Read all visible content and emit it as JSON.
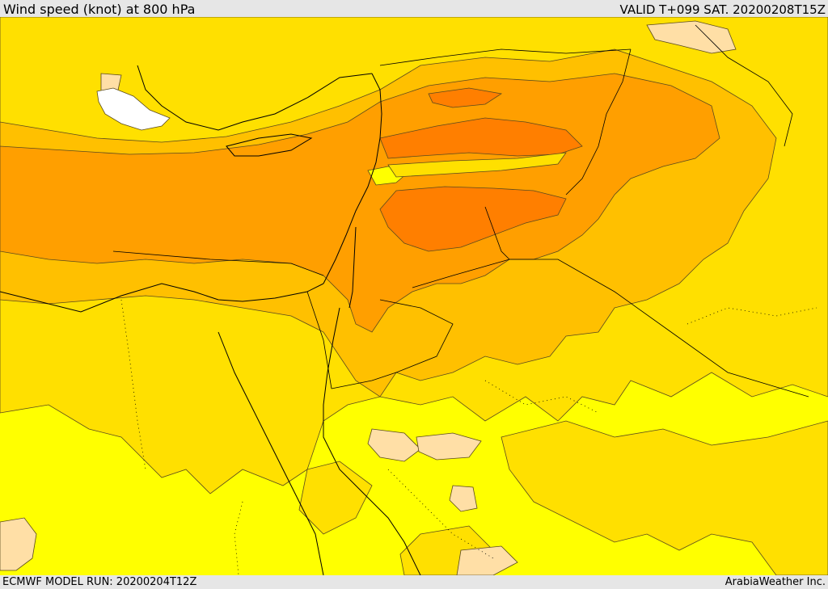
{
  "header": {
    "title": "Wind speed (knot) at 800 hPa",
    "valid": "VALID T+099 SAT. 20200208T15Z"
  },
  "footer": {
    "model_run": "ECMWF MODEL RUN: 20200204T12Z",
    "credit": "ArabiaWeather Inc."
  },
  "map": {
    "field": "wind-speed",
    "level_hpa": 800,
    "colors": {
      "calm": "#ffffff",
      "light": "#ffffff",
      "pale": "#ffdfa6",
      "yellow": "#ffff00",
      "gold": "#ffe000",
      "amber": "#ffc000",
      "orange": "#ff9f00",
      "dark_orange": "#ff7f00",
      "contour": "#5a4a1e",
      "border": "#000000"
    }
  }
}
